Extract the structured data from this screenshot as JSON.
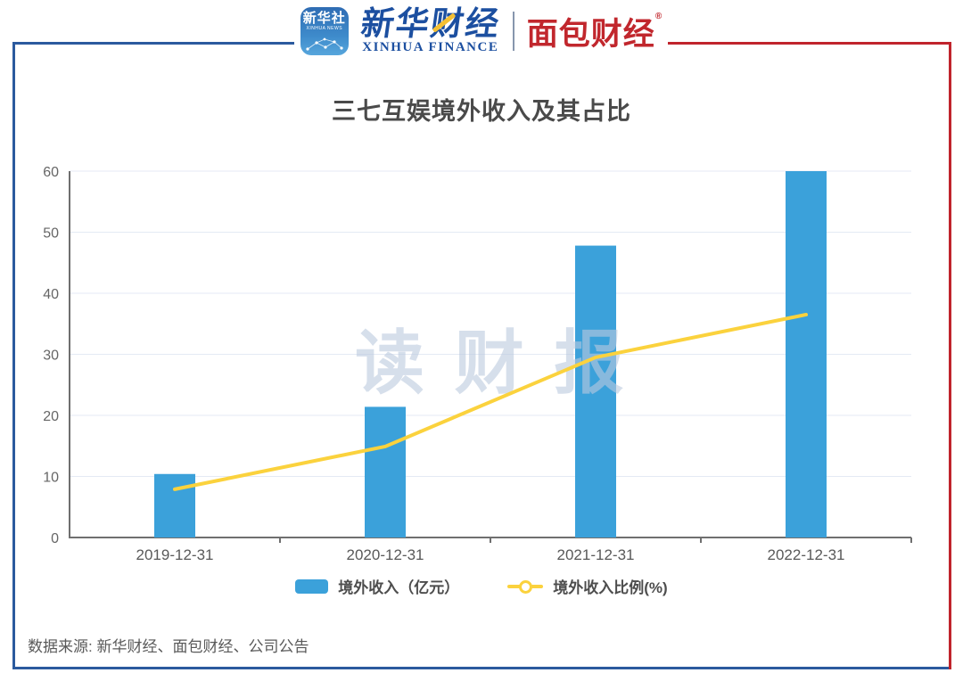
{
  "colors": {
    "border_blue": "#2B5A9E",
    "border_red": "#C0242C",
    "bar_blue": "#3BA1DA",
    "line_yellow": "#FBD23D",
    "xinhua_blue": "#1C4FA0",
    "mianbao_red": "#C1272D",
    "grid": "#E4EAF4",
    "axis": "#6F6F6F",
    "tick_label": "#666666",
    "watermark": "#BCCADF"
  },
  "header": {
    "xinhua_news": {
      "name": "新华社",
      "sub": "XINHUA NEWS"
    },
    "xinhua_finance": {
      "cn": "新华财经",
      "en": "XINHUA FINANCE"
    },
    "mianbao": {
      "cn": "面包财经",
      "reg": "®"
    }
  },
  "title": "三七互娱境外收入及其占比",
  "watermark": "读 财 报",
  "footer": {
    "source": "数据来源: 新华财经、面包财经、公司公告"
  },
  "chart_data": {
    "type": "bar+line",
    "title": "三七互娱境外收入及其占比",
    "categories": [
      "2019-12-31",
      "2020-12-31",
      "2021-12-31",
      "2022-12-31"
    ],
    "series": [
      {
        "name": "境外收入（亿元）",
        "type": "bar",
        "color": "#3BA1DA",
        "values": [
          10.4,
          21.4,
          47.8,
          60.0
        ]
      },
      {
        "name": "境外收入比例(%)",
        "type": "line",
        "color": "#FBD23D",
        "values": [
          7.9,
          14.9,
          29.5,
          36.5
        ]
      }
    ],
    "ylim": [
      0,
      60
    ],
    "yticks": [
      0,
      10,
      20,
      30,
      40,
      50,
      60
    ],
    "xlabel": "",
    "ylabel": "",
    "grid": true,
    "legend_position": "bottom"
  }
}
